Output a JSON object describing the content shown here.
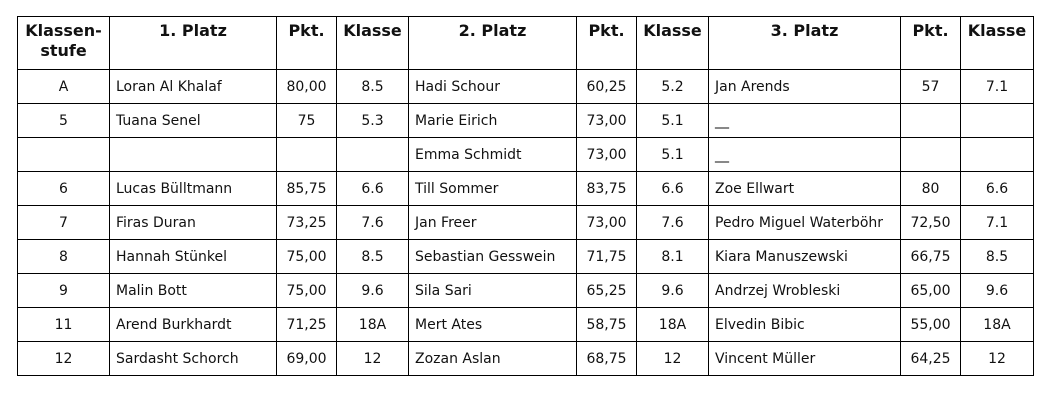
{
  "headers": {
    "stufe_line1": "Klassen-",
    "stufe_line2": "stufe",
    "first": "1. Platz",
    "pkt1": "Pkt.",
    "klasse1": "Klasse",
    "second": "2. Platz",
    "pkt2": "Pkt.",
    "klasse2": "Klasse",
    "third": "3. Platz",
    "pkt3": "Pkt.",
    "klasse3": "Klasse"
  },
  "rows": [
    {
      "stufe": "A",
      "p1": "Loran Al Khalaf",
      "pk1": "80,00",
      "k1": "8.5",
      "p2": "Hadi Schour",
      "pk2": "60,25",
      "k2": "5.2",
      "p3": "Jan Arends",
      "pk3": "57",
      "k3": "7.1"
    },
    {
      "stufe": "5",
      "p1": "Tuana Senel",
      "pk1": "75",
      "k1": "5.3",
      "p2": "Marie Eirich",
      "pk2": "73,00",
      "k2": "5.1",
      "p3": "__",
      "pk3": "",
      "k3": ""
    },
    {
      "stufe": "",
      "p1": "",
      "pk1": "",
      "k1": "",
      "p2": "Emma Schmidt",
      "pk2": "73,00",
      "k2": "5.1",
      "p3": "__",
      "pk3": "",
      "k3": ""
    },
    {
      "stufe": "6",
      "p1": "Lucas Bülltmann",
      "pk1": "85,75",
      "k1": "6.6",
      "p2": "Till Sommer",
      "pk2": "83,75",
      "k2": "6.6",
      "p3": "Zoe Ellwart",
      "pk3": "80",
      "k3": "6.6"
    },
    {
      "stufe": "7",
      "p1": "Firas Duran",
      "pk1": "73,25",
      "k1": "7.6",
      "p2": "Jan Freer",
      "pk2": "73,00",
      "k2": "7.6",
      "p3": "Pedro Miguel Waterböhr",
      "pk3": "72,50",
      "k3": "7.1"
    },
    {
      "stufe": "8",
      "p1": "Hannah Stünkel",
      "pk1": "75,00",
      "k1": "8.5",
      "p2": "Sebastian Gesswein",
      "pk2": "71,75",
      "k2": "8.1",
      "p3": "Kiara Manuszewski",
      "pk3": "66,75",
      "k3": "8.5"
    },
    {
      "stufe": "9",
      "p1": "Malin Bott",
      "pk1": "75,00",
      "k1": "9.6",
      "p2": "Sila Sari",
      "pk2": "65,25",
      "k2": "9.6",
      "p3": "Andrzej Wrobleski",
      "pk3": "65,00",
      "k3": "9.6"
    },
    {
      "stufe": "11",
      "p1": "Arend Burkhardt",
      "pk1": "71,25",
      "k1": "18A",
      "p2": "Mert Ates",
      "pk2": "58,75",
      "k2": "18A",
      "p3": "Elvedin Bibic",
      "pk3": "55,00",
      "k3": "18A"
    },
    {
      "stufe": "12",
      "p1": "Sardasht Schorch",
      "pk1": "69,00",
      "k1": "12",
      "p2": "Zozan Aslan",
      "pk2": "68,75",
      "k2": "12",
      "p3": "Vincent Müller",
      "pk3": "64,25",
      "k3": "12"
    }
  ]
}
